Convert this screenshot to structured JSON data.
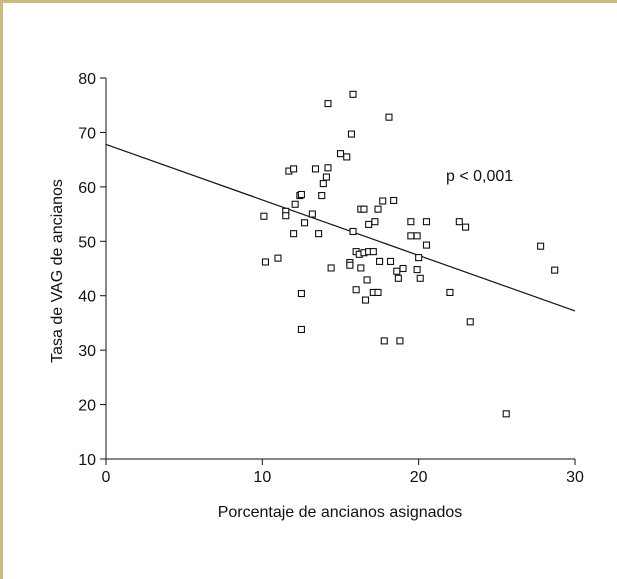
{
  "chart_data": {
    "type": "scatter",
    "title": "",
    "xlabel": "Porcentaje de ancianos asignados",
    "ylabel": "Tasa de VAG de ancianos",
    "xlim": [
      0,
      30
    ],
    "ylim": [
      10,
      80
    ],
    "xticks": [
      "0",
      "10",
      "20",
      "30"
    ],
    "yticks": [
      "10",
      "20",
      "30",
      "40",
      "50",
      "60",
      "70",
      "80"
    ],
    "grid": false,
    "legend": "none",
    "annotation": "p < 0,001",
    "marker": "open-square",
    "color": "#111111",
    "regression_line": {
      "x": [
        0,
        30
      ],
      "y": [
        67.8,
        37.2
      ]
    },
    "points": [
      {
        "x": 10.1,
        "y": 54.6
      },
      {
        "x": 10.2,
        "y": 46.2
      },
      {
        "x": 11.0,
        "y": 46.9
      },
      {
        "x": 11.5,
        "y": 55.5
      },
      {
        "x": 11.5,
        "y": 54.7
      },
      {
        "x": 11.7,
        "y": 62.9
      },
      {
        "x": 12.0,
        "y": 51.4
      },
      {
        "x": 12.0,
        "y": 63.3
      },
      {
        "x": 12.1,
        "y": 56.8
      },
      {
        "x": 12.4,
        "y": 58.4
      },
      {
        "x": 12.5,
        "y": 58.6
      },
      {
        "x": 12.5,
        "y": 40.4
      },
      {
        "x": 12.5,
        "y": 33.8
      },
      {
        "x": 12.7,
        "y": 53.4
      },
      {
        "x": 13.2,
        "y": 55.0
      },
      {
        "x": 13.4,
        "y": 63.3
      },
      {
        "x": 13.6,
        "y": 51.4
      },
      {
        "x": 13.8,
        "y": 58.4
      },
      {
        "x": 13.9,
        "y": 60.6
      },
      {
        "x": 14.1,
        "y": 61.8
      },
      {
        "x": 14.2,
        "y": 63.5
      },
      {
        "x": 14.2,
        "y": 75.3
      },
      {
        "x": 14.4,
        "y": 45.1
      },
      {
        "x": 15.0,
        "y": 66.1
      },
      {
        "x": 15.4,
        "y": 65.5
      },
      {
        "x": 15.6,
        "y": 46.1
      },
      {
        "x": 15.6,
        "y": 45.6
      },
      {
        "x": 15.7,
        "y": 69.7
      },
      {
        "x": 15.8,
        "y": 51.8
      },
      {
        "x": 15.8,
        "y": 77.0
      },
      {
        "x": 16.0,
        "y": 48.1
      },
      {
        "x": 16.0,
        "y": 41.1
      },
      {
        "x": 16.2,
        "y": 47.6
      },
      {
        "x": 16.3,
        "y": 55.9
      },
      {
        "x": 16.3,
        "y": 45.1
      },
      {
        "x": 16.5,
        "y": 55.9
      },
      {
        "x": 16.5,
        "y": 47.9
      },
      {
        "x": 16.6,
        "y": 39.2
      },
      {
        "x": 16.7,
        "y": 42.9
      },
      {
        "x": 16.8,
        "y": 48.1
      },
      {
        "x": 16.8,
        "y": 53.1
      },
      {
        "x": 17.1,
        "y": 48.1
      },
      {
        "x": 17.1,
        "y": 40.6
      },
      {
        "x": 17.2,
        "y": 53.6
      },
      {
        "x": 17.4,
        "y": 55.9
      },
      {
        "x": 17.4,
        "y": 40.6
      },
      {
        "x": 17.5,
        "y": 46.3
      },
      {
        "x": 17.7,
        "y": 57.4
      },
      {
        "x": 17.8,
        "y": 31.7
      },
      {
        "x": 18.1,
        "y": 72.8
      },
      {
        "x": 18.2,
        "y": 46.3
      },
      {
        "x": 18.4,
        "y": 57.5
      },
      {
        "x": 18.6,
        "y": 44.5
      },
      {
        "x": 18.7,
        "y": 43.2
      },
      {
        "x": 18.8,
        "y": 31.7
      },
      {
        "x": 19.0,
        "y": 45.0
      },
      {
        "x": 19.5,
        "y": 53.6
      },
      {
        "x": 19.5,
        "y": 51.0
      },
      {
        "x": 19.9,
        "y": 51.0
      },
      {
        "x": 19.9,
        "y": 44.8
      },
      {
        "x": 20.0,
        "y": 47.0
      },
      {
        "x": 20.1,
        "y": 43.2
      },
      {
        "x": 20.5,
        "y": 53.6
      },
      {
        "x": 20.5,
        "y": 49.3
      },
      {
        "x": 22.0,
        "y": 40.6
      },
      {
        "x": 22.6,
        "y": 53.6
      },
      {
        "x": 23.0,
        "y": 52.6
      },
      {
        "x": 23.3,
        "y": 35.2
      },
      {
        "x": 25.6,
        "y": 18.3
      },
      {
        "x": 27.8,
        "y": 49.1
      },
      {
        "x": 28.7,
        "y": 44.7
      }
    ]
  }
}
